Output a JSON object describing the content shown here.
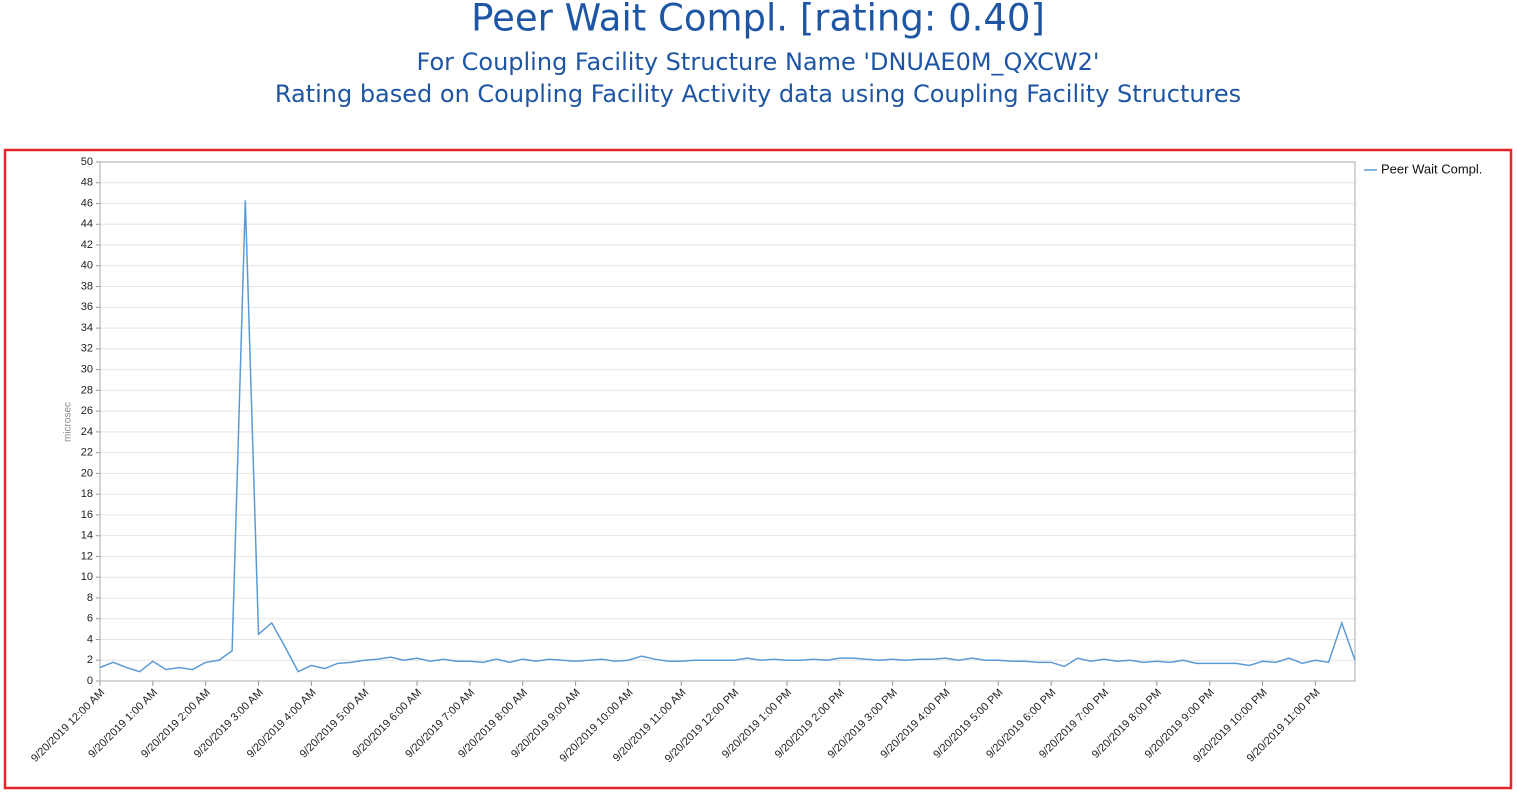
{
  "chart_data": {
    "type": "line",
    "title": "Peer Wait Compl. [rating: 0.40]",
    "subtitle": [
      "For Coupling Facility Structure Name 'DNUAE0M_QXCW2'",
      "Rating based on Coupling Facility Activity data using Coupling Facility Structures"
    ],
    "ylabel": "microsec",
    "categories": [
      "9/20/2019 12:00 AM",
      null,
      null,
      null,
      "9/20/2019 1:00 AM",
      null,
      null,
      null,
      "9/20/2019 2:00 AM",
      null,
      null,
      null,
      "9/20/2019 3:00 AM",
      null,
      null,
      null,
      "9/20/2019 4:00 AM",
      null,
      null,
      null,
      "9/20/2019 5:00 AM",
      null,
      null,
      null,
      "9/20/2019 6:00 AM",
      null,
      null,
      null,
      "9/20/2019 7:00 AM",
      null,
      null,
      null,
      "9/20/2019 8:00 AM",
      null,
      null,
      null,
      "9/20/2019 9:00 AM",
      null,
      null,
      null,
      "9/20/2019 10:00 AM",
      null,
      null,
      null,
      "9/20/2019 11:00 AM",
      null,
      null,
      null,
      "9/20/2019 12:00 PM",
      null,
      null,
      null,
      "9/20/2019 1:00 PM",
      null,
      null,
      null,
      "9/20/2019 2:00 PM",
      null,
      null,
      null,
      "9/20/2019 3:00 PM",
      null,
      null,
      null,
      "9/20/2019 4:00 PM",
      null,
      null,
      null,
      "9/20/2019 5:00 PM",
      null,
      null,
      null,
      "9/20/2019 6:00 PM",
      null,
      null,
      null,
      "9/20/2019 7:00 PM",
      null,
      null,
      null,
      "9/20/2019 8:00 PM",
      null,
      null,
      null,
      "9/20/2019 9:00 PM",
      null,
      null,
      null,
      "9/20/2019 10:00 PM",
      null,
      null,
      null,
      "9/20/2019 11:00 PM",
      null,
      null,
      null
    ],
    "series": [
      {
        "name": "Peer Wait Compl.",
        "color": "#5b9bd5",
        "values": [
          1.3,
          1.8,
          1.3,
          0.9,
          1.9,
          1.1,
          1.3,
          1.1,
          1.8,
          2.0,
          2.9,
          46.3,
          4.5,
          5.6,
          3.3,
          0.9,
          1.5,
          1.2,
          1.7,
          1.8,
          2.0,
          2.1,
          2.3,
          2.0,
          2.2,
          1.9,
          2.1,
          1.9,
          1.9,
          1.8,
          2.1,
          1.8,
          2.1,
          1.9,
          2.1,
          2.0,
          1.9,
          2.0,
          2.1,
          1.9,
          2.0,
          2.4,
          2.1,
          1.9,
          1.9,
          2.0,
          2.0,
          2.0,
          2.0,
          2.2,
          2.0,
          2.1,
          2.0,
          2.0,
          2.1,
          2.0,
          2.2,
          2.2,
          2.1,
          2.0,
          2.1,
          2.0,
          2.1,
          2.1,
          2.2,
          2.0,
          2.2,
          2.0,
          2.0,
          1.9,
          1.9,
          1.8,
          1.8,
          1.4,
          2.2,
          1.9,
          2.1,
          1.9,
          2.0,
          1.8,
          1.9,
          1.8,
          2.0,
          1.7,
          1.7,
          1.7,
          1.7,
          1.5,
          1.9,
          1.8,
          2.2,
          1.7,
          2.0,
          1.8,
          5.6,
          2.0
        ]
      }
    ],
    "ylim": [
      0,
      50
    ],
    "yticks": [
      0,
      2,
      4,
      6,
      8,
      10,
      12,
      14,
      16,
      18,
      20,
      22,
      24,
      26,
      28,
      30,
      32,
      34,
      36,
      38,
      40,
      42,
      44,
      46,
      48,
      50
    ],
    "grid": true,
    "legend": "top-right"
  }
}
